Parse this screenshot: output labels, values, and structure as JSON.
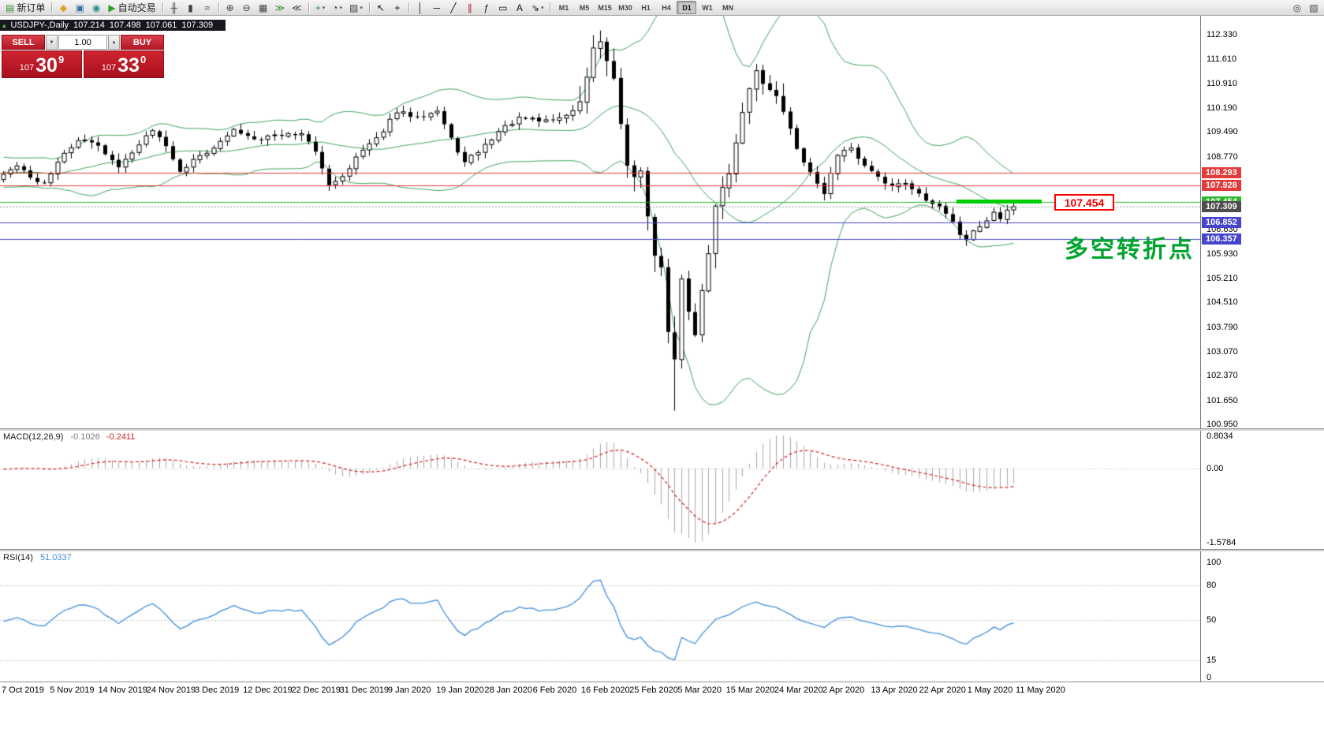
{
  "toolbar": {
    "items": [
      {
        "name": "new-order-button",
        "icon": "new-order-icon",
        "glyph": "▤",
        "color": "#2e8b2e",
        "label": "新订单"
      },
      {
        "sep": true
      },
      {
        "name": "gold-icon",
        "glyph": "◆",
        "color": "#d9a520"
      },
      {
        "name": "accounts-icon",
        "glyph": "▣",
        "color": "#3a6ea5"
      },
      {
        "name": "service-icon",
        "glyph": "◉",
        "color": "#2c8c8c"
      },
      {
        "name": "auto-trading-button",
        "icon": "auto-trading-icon",
        "glyph": "▶",
        "color": "#2ca02c",
        "label": "自动交易"
      },
      {
        "sep": true
      },
      {
        "name": "bar-chart-icon",
        "glyph": "╫",
        "color": "#444"
      },
      {
        "name": "candlestick-chart-icon",
        "glyph": "▮",
        "color": "#444"
      },
      {
        "name": "line-chart-icon",
        "glyph": "≈",
        "color": "#444"
      },
      {
        "sep": true
      },
      {
        "name": "zoom-in-icon",
        "glyph": "⊕",
        "color": "#444"
      },
      {
        "name": "zoom-out-icon",
        "glyph": "⊖",
        "color": "#444"
      },
      {
        "name": "tile-windows-icon",
        "glyph": "▦",
        "color": "#444"
      },
      {
        "name": "auto-scroll-icon",
        "glyph": "≫",
        "color": "#2e8b2e"
      },
      {
        "name": "chart-shift-icon",
        "glyph": "≪",
        "color": "#444"
      },
      {
        "sep": true
      },
      {
        "name": "indicators-icon",
        "glyph": "+",
        "color": "#2e8b2e",
        "caret": true
      },
      {
        "name": "periods-icon",
        "glyph": "◔",
        "color": "#444",
        "caret": true
      },
      {
        "name": "templates-icon",
        "glyph": "▨",
        "color": "#444",
        "caret": true
      },
      {
        "sep": true
      },
      {
        "name": "cursor-icon",
        "glyph": "↖",
        "color": "#111"
      },
      {
        "name": "crosshair-icon",
        "glyph": "+",
        "color": "#111"
      },
      {
        "sep": true
      },
      {
        "name": "vertical-line-icon",
        "glyph": "│",
        "color": "#111"
      },
      {
        "name": "horizontal-line-icon",
        "glyph": "─",
        "color": "#111"
      },
      {
        "name": "trendline-icon",
        "glyph": "╱",
        "color": "#111"
      },
      {
        "name": "equidistant-channel-icon",
        "glyph": "∥",
        "color": "#b22222"
      },
      {
        "name": "fibonacci-icon",
        "glyph": "ƒ",
        "color": "#111"
      },
      {
        "name": "shapes-icon",
        "glyph": "▭",
        "color": "#111"
      },
      {
        "name": "text-icon",
        "glyph": "A",
        "color": "#111"
      },
      {
        "name": "arrows-icon",
        "glyph": "⇘",
        "color": "#111",
        "caret": true
      },
      {
        "sep": true
      }
    ],
    "timeframes": [
      "M1",
      "M5",
      "M15",
      "M30",
      "H1",
      "H4",
      "D1",
      "W1",
      "MN"
    ],
    "active_timeframe": "D1",
    "right_items": [
      {
        "name": "search-icon",
        "glyph": "◎",
        "color": "#444"
      },
      {
        "name": "layout-icon",
        "glyph": "▧",
        "color": "#444"
      }
    ]
  },
  "chart": {
    "title": "USDJPY-,Daily",
    "open": "107.214",
    "high": "107.498",
    "low": "107.061",
    "close": "107.309",
    "icon_glyph": "▴"
  },
  "trade_panel": {
    "sell_label": "SELL",
    "buy_label": "BUY",
    "volume": "1.00",
    "spin_down_glyph": "▼",
    "spin_up_glyph": "▲",
    "sell_price": {
      "small": "107",
      "big": "30",
      "sup": "9"
    },
    "buy_price": {
      "small": "107",
      "big": "33",
      "sup": "0"
    }
  },
  "annotations": {
    "price_label": "107.454",
    "cn_note": "多空转折点",
    "cn_note_color": "#00a32e"
  },
  "chart_data": {
    "type": "candlestick",
    "symbol": "USDJPY-",
    "period": "Daily",
    "last_ohlc": {
      "open": 107.214,
      "high": 107.498,
      "low": 107.061,
      "close": 107.309
    },
    "y_axis_ticks": [
      112.33,
      111.61,
      110.91,
      110.19,
      109.49,
      108.77,
      106.63,
      105.93,
      105.21,
      104.51,
      103.79,
      103.07,
      102.37,
      101.65,
      100.95
    ],
    "x_axis_labels": [
      "7 Oct 2019",
      "5 Nov 2019",
      "14 Nov 2019",
      "24 Nov 2019",
      "3 Dec 2019",
      "12 Dec 2019",
      "22 Dec 2019",
      "31 Dec 2019",
      "9 Jan 2020",
      "19 Jan 2020",
      "28 Jan 2020",
      "6 Feb 2020",
      "16 Feb 2020",
      "25 Feb 2020",
      "5 Mar 2020",
      "15 Mar 2020",
      "24 Mar 2020",
      "2 Apr 2020",
      "13 Apr 2020",
      "22 Apr 2020",
      "1 May 2020",
      "11 May 2020"
    ],
    "horizontal_lines": [
      {
        "price": 108.293,
        "color": "#e23b3b"
      },
      {
        "price": 107.928,
        "color": "#e23b3b"
      },
      {
        "price": 107.454,
        "color": "#2db82d"
      },
      {
        "price": 106.852,
        "color": "#4444cc"
      },
      {
        "price": 106.357,
        "color": "#4444cc"
      }
    ],
    "current_price_line": {
      "price": 107.309,
      "color": "#9a9a9a",
      "style": "dotted"
    },
    "axis_badges": [
      {
        "price": 108.293,
        "label": "108.293",
        "bg": "#e23b3b"
      },
      {
        "price": 107.928,
        "label": "107.928",
        "bg": "#e23b3b"
      },
      {
        "price": 107.454,
        "label": "107.454",
        "bg": "#2db82d"
      },
      {
        "price": 107.309,
        "label": "107.309",
        "bg": "#4d4d4d"
      },
      {
        "price": 106.852,
        "label": "106.852",
        "bg": "#4444cc"
      },
      {
        "price": 106.357,
        "label": "106.357",
        "bg": "#4444cc"
      }
    ],
    "highlight_segment": {
      "price": 107.454,
      "color": "#00ce00"
    },
    "price_anchors": [
      [
        0,
        108.25
      ],
      [
        2,
        108.5
      ],
      [
        4,
        108.15
      ],
      [
        6,
        108.0
      ],
      [
        8,
        108.6
      ],
      [
        11,
        109.25
      ],
      [
        14,
        109.1
      ],
      [
        17,
        108.45
      ],
      [
        19,
        108.9
      ],
      [
        22,
        109.55
      ],
      [
        24,
        109.1
      ],
      [
        26,
        108.35
      ],
      [
        29,
        108.8
      ],
      [
        32,
        109.2
      ],
      [
        34,
        109.55
      ],
      [
        37,
        109.3
      ],
      [
        40,
        109.4
      ],
      [
        44,
        109.45
      ],
      [
        46,
        108.9
      ],
      [
        48,
        107.95
      ],
      [
        50,
        108.2
      ],
      [
        52,
        108.75
      ],
      [
        55,
        109.3
      ],
      [
        58,
        110.05
      ],
      [
        61,
        109.95
      ],
      [
        64,
        110.1
      ],
      [
        66,
        109.3
      ],
      [
        68,
        108.6
      ],
      [
        70,
        108.9
      ],
      [
        73,
        109.5
      ],
      [
        76,
        109.9
      ],
      [
        79,
        109.8
      ],
      [
        82,
        109.9
      ],
      [
        84,
        110.1
      ],
      [
        85,
        110.4
      ],
      [
        86,
        111.1
      ],
      [
        87,
        111.9
      ],
      [
        88,
        112.1
      ],
      [
        89,
        111.5
      ],
      [
        90,
        111.0
      ],
      [
        92,
        108.5
      ],
      [
        93,
        108.2
      ],
      [
        94,
        108.4
      ],
      [
        95,
        107.0
      ],
      [
        96,
        105.9
      ],
      [
        97,
        105.5
      ],
      [
        98,
        103.6
      ],
      [
        99,
        102.9
      ],
      [
        100,
        105.2
      ],
      [
        101,
        104.2
      ],
      [
        102,
        103.6
      ],
      [
        103,
        104.8
      ],
      [
        105,
        107.3
      ],
      [
        107,
        108.3
      ],
      [
        109,
        110.1
      ],
      [
        111,
        111.3
      ],
      [
        113,
        110.7
      ],
      [
        115,
        110.1
      ],
      [
        117,
        109.0
      ],
      [
        119,
        108.3
      ],
      [
        121,
        107.7
      ],
      [
        123,
        108.8
      ],
      [
        125,
        109.0
      ],
      [
        127,
        108.5
      ],
      [
        129,
        108.2
      ],
      [
        131,
        107.9
      ],
      [
        133,
        108.0
      ],
      [
        135,
        107.7
      ],
      [
        137,
        107.4
      ],
      [
        139,
        107.1
      ],
      [
        141,
        106.5
      ],
      [
        142,
        106.35
      ],
      [
        143,
        106.6
      ],
      [
        145,
        106.9
      ],
      [
        146,
        107.15
      ],
      [
        147,
        106.95
      ],
      [
        148,
        107.2
      ],
      [
        149,
        107.309
      ]
    ],
    "indicators": {
      "bollinger": {
        "period": 20,
        "deviation": 2,
        "color": "#3fa45f"
      },
      "macd": {
        "label": "MACD(12,26,9)",
        "value_main": "-0.1026",
        "value_signal": "-0.2411",
        "scale_max": "0.8034",
        "scale_zero": "0.00",
        "scale_min": "-1.5784",
        "histogram_color": "#a9a9a9",
        "signal_color": "#d02020"
      },
      "rsi": {
        "label": "RSI(14)",
        "value": "51.0337",
        "levels": [
          100,
          80,
          50,
          15,
          0
        ],
        "color": "#3e8ede"
      }
    }
  }
}
